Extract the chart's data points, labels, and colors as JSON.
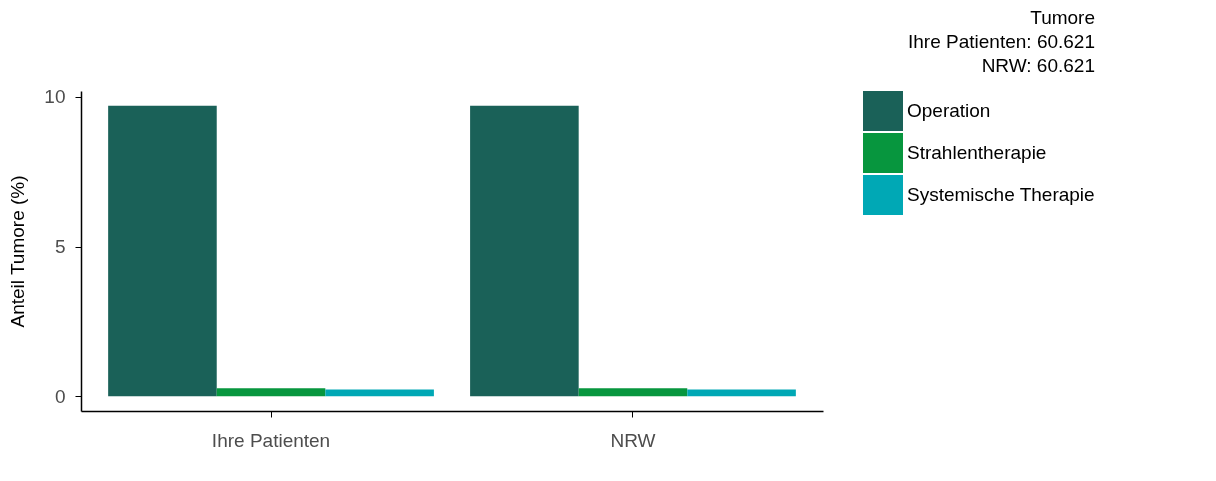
{
  "chart_data": {
    "type": "bar",
    "title": "Tumore",
    "annotations": [
      "Ihre Patienten: 60.621",
      "NRW: 60.621"
    ],
    "ylabel": "Anteil Tumore (%)",
    "categories": [
      "Ihre Patienten",
      "NRW"
    ],
    "series": [
      {
        "name": "Operation",
        "color": "#1a6158",
        "values": [
          9.7,
          9.7
        ]
      },
      {
        "name": "Strahlentherapie",
        "color": "#07963e",
        "values": [
          0.27,
          0.27
        ]
      },
      {
        "name": "Systemische Therapie",
        "color": "#00a8b5",
        "values": [
          0.23,
          0.23
        ]
      }
    ],
    "ylim": [
      -0.49,
      10.19
    ],
    "yticks": [
      0,
      5,
      10
    ],
    "grid": false,
    "legend": "right"
  }
}
